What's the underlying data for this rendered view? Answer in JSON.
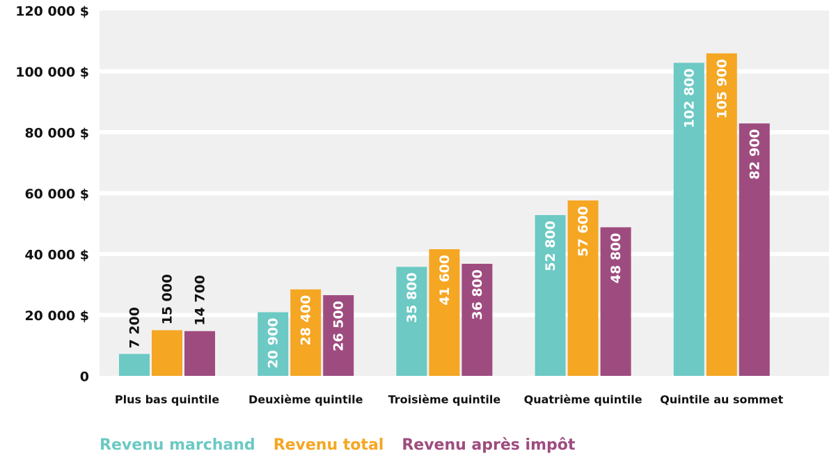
{
  "chart_data": {
    "type": "bar",
    "categories": [
      "Plus bas quintile",
      "Deuxième quintile",
      "Troisième quintile",
      "Quatrième quintile",
      "Quintile au sommet"
    ],
    "series": [
      {
        "name": "Revenu marchand",
        "color": "#6cc9c4",
        "values": [
          7200,
          20900,
          35800,
          52800,
          102800
        ],
        "value_labels": [
          "7 200",
          "20 900",
          "35 800",
          "52 800",
          "102 800"
        ]
      },
      {
        "name": "Revenu total",
        "color": "#f5a623",
        "values": [
          15000,
          28400,
          41600,
          57600,
          105900
        ],
        "value_labels": [
          "15 000",
          "28 400",
          "41 600",
          "57 600",
          "105 900"
        ]
      },
      {
        "name": "Revenu après impôt",
        "color": "#9e4c7f",
        "values": [
          14700,
          26500,
          36800,
          48800,
          82900
        ],
        "value_labels": [
          "14 700",
          "26 500",
          "36 800",
          "48 800",
          "82 900"
        ]
      }
    ],
    "ylim": [
      0,
      120000
    ],
    "yticks": [
      0,
      {
        "value": 20000,
        "label": "20 000 $"
      },
      {
        "value": 40000,
        "label": "40 000 $"
      },
      {
        "value": 60000,
        "label": "60 000 $"
      },
      {
        "value": 80000,
        "label": "80 000 $"
      },
      {
        "value": 100000,
        "label": "100 000 $"
      },
      {
        "value": 120000,
        "label": "120 000 $"
      }
    ],
    "grid": true
  }
}
